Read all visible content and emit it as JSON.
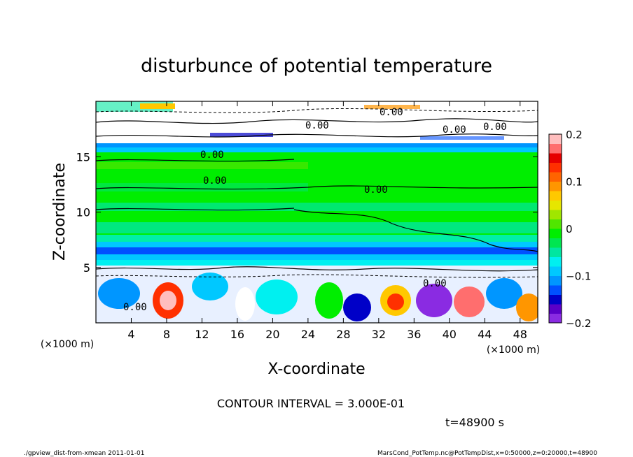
{
  "chart_data": {
    "type": "heatmap",
    "title": "disturbunce of potential temperature",
    "xlabel": "X-coordinate",
    "ylabel": "Z-coordinate",
    "x_unit": "(×1000 m)",
    "z_unit": "(×1000 m)",
    "xlim": [
      0,
      50
    ],
    "zlim": [
      0,
      20
    ],
    "x_ticks": [
      4,
      8,
      12,
      16,
      20,
      24,
      28,
      32,
      36,
      40,
      44,
      48
    ],
    "z_ticks": [
      5,
      10,
      15
    ],
    "colorbar": {
      "range": [
        -0.2,
        0.2
      ],
      "tick_labels": [
        "0.2",
        "0.1",
        "0",
        "−0.1",
        "−0.2"
      ],
      "tick_values": [
        0.2,
        0.1,
        0,
        -0.1,
        -0.2
      ],
      "colors": [
        "#8a2be2",
        "#5a00c8",
        "#0000c8",
        "#0050ff",
        "#0096ff",
        "#00c8ff",
        "#00f0f0",
        "#00e6a0",
        "#00e650",
        "#00ee00",
        "#50e600",
        "#a0e600",
        "#e6e600",
        "#ffc800",
        "#ff9600",
        "#ff6400",
        "#ff3000",
        "#e60000",
        "#ff6e6e",
        "#ffbebe"
      ]
    },
    "contour_labels": [
      "0.00",
      "0.00",
      "0.00",
      "0.00",
      "0.00",
      "0.00",
      "0.00",
      "0.00",
      "0.00"
    ],
    "contour_interval": "CONTOUR INTERVAL = 3.000E-01",
    "time": "t=48900 s"
  },
  "footer": {
    "left": "./gpview_dist-from-xmean   2011-01-01",
    "right": "MarsCond_PotTemp.nc@PotTempDist,x=0:50000,z=0:20000,t=48900"
  }
}
